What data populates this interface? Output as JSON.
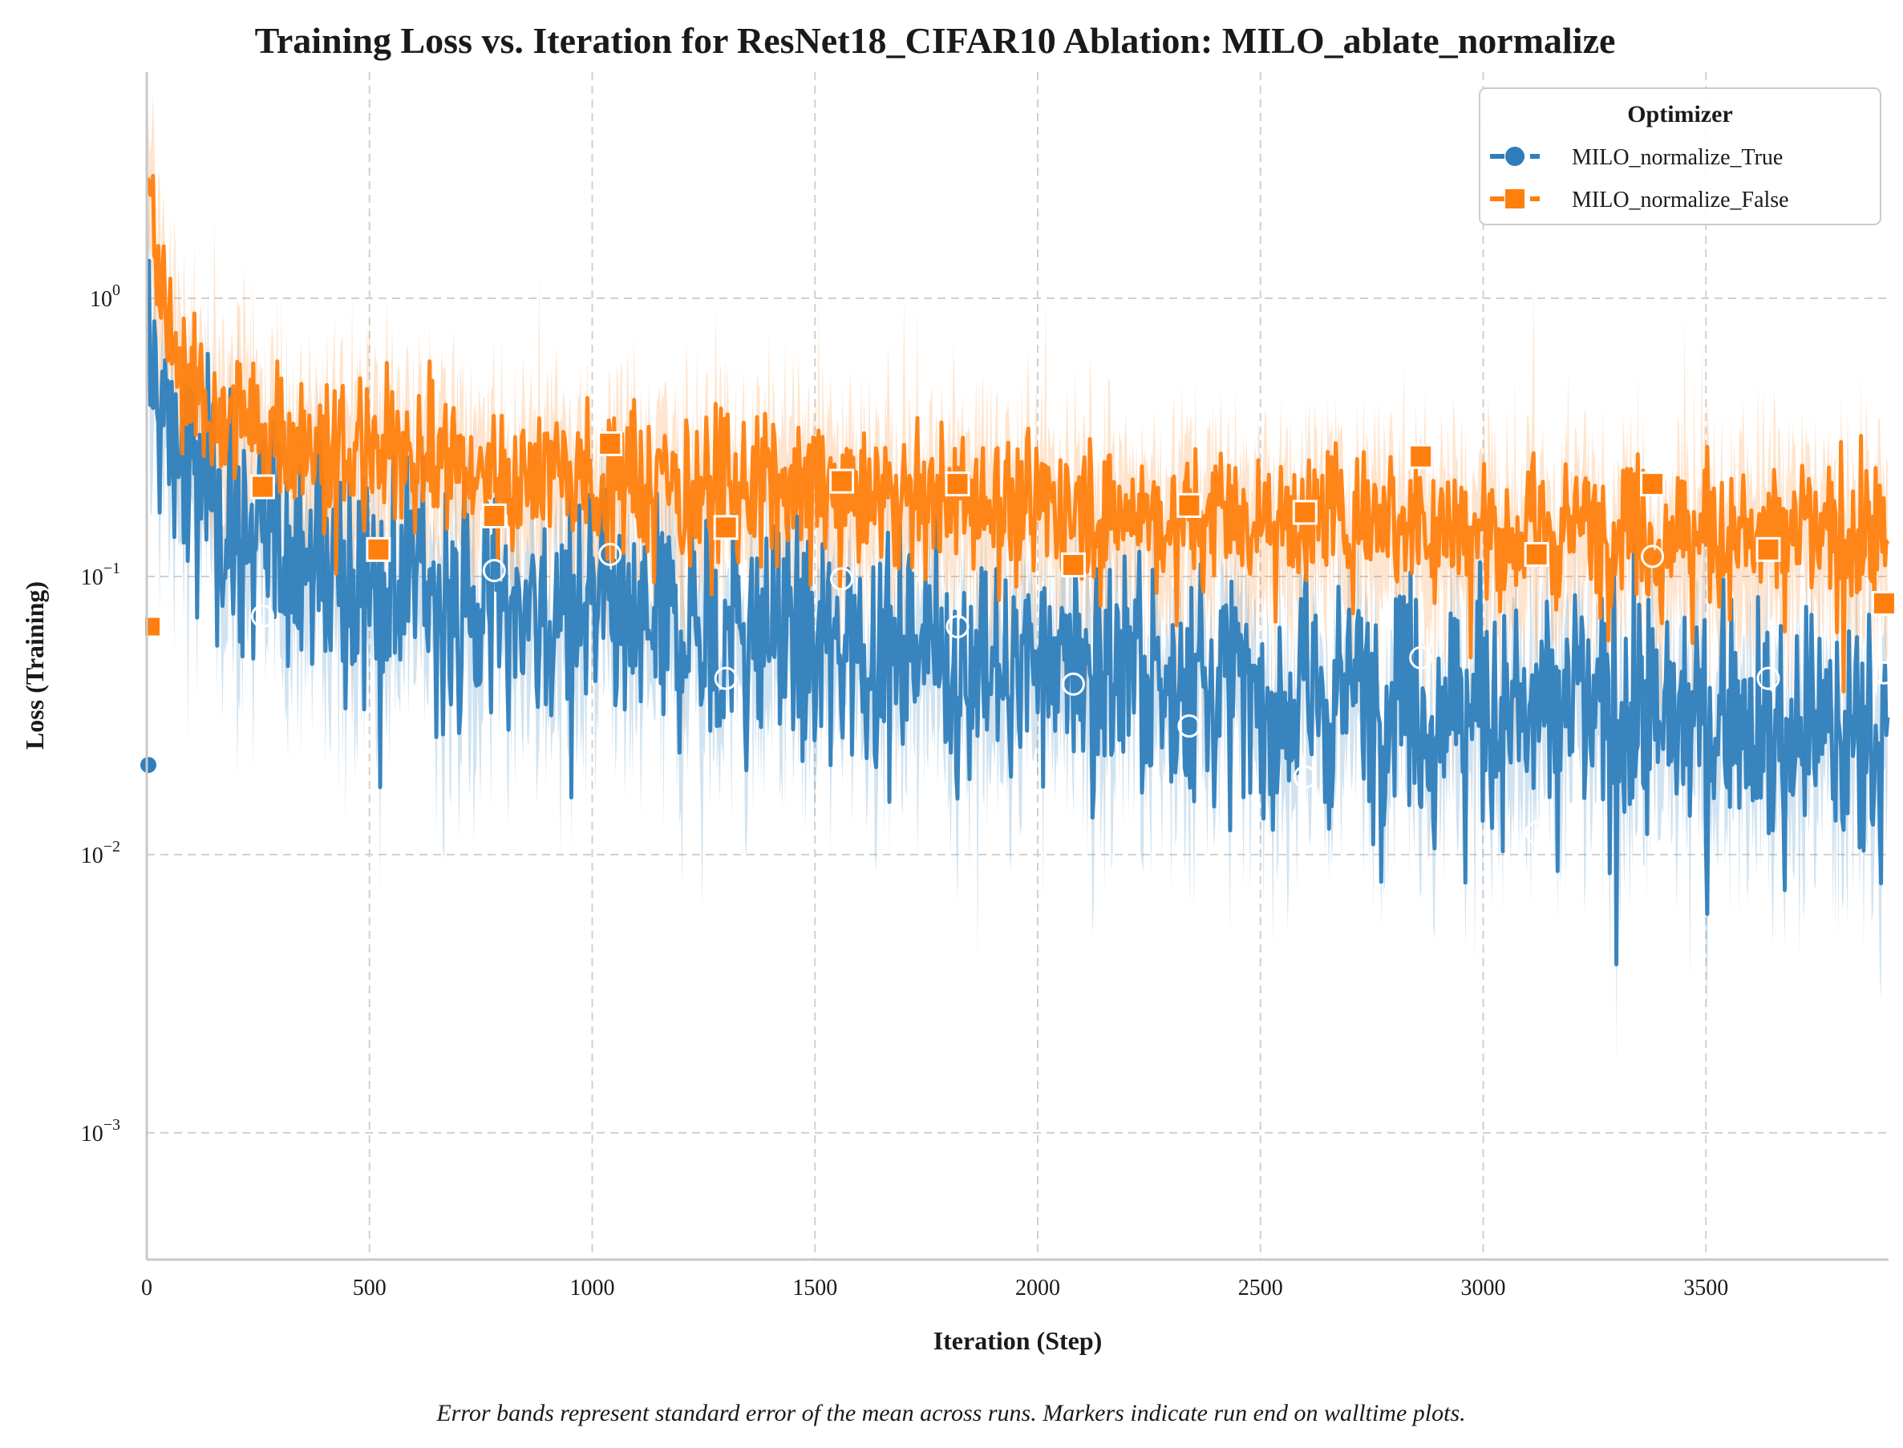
{
  "chart_data": {
    "type": "line",
    "title": "Training Loss vs. Iteration for ResNet18_CIFAR10 Ablation: MILO_ablate_normalize",
    "xlabel": "Iteration (Step)",
    "ylabel": "Loss (Training)",
    "yscale": "log",
    "xlim": [
      0,
      3910
    ],
    "ylim": [
      0.00035,
      6.5
    ],
    "x_ticks": [
      0,
      500,
      1000,
      1500,
      2000,
      2500,
      3000,
      3500
    ],
    "y_ticks": [
      {
        "value": 0.001,
        "base": "10",
        "exp": "−3"
      },
      {
        "value": 0.01,
        "base": "10",
        "exp": "−2"
      },
      {
        "value": 0.1,
        "base": "10",
        "exp": "−1"
      },
      {
        "value": 1,
        "base": "10",
        "exp": "0"
      }
    ],
    "grid": true,
    "legend": {
      "title": "Optimizer",
      "position": "top-right"
    },
    "caption": "Error bands represent standard error of the mean across runs. Markers indicate run end on walltime plots.",
    "series": [
      {
        "name": "MILO_normalize_True",
        "color": "#2e7ebc",
        "marker": "circle",
        "markers": [
          {
            "x": 0,
            "y": 0.021
          },
          {
            "x": 260,
            "y": 0.072
          },
          {
            "x": 780,
            "y": 0.105
          },
          {
            "x": 1040,
            "y": 0.12
          },
          {
            "x": 1300,
            "y": 0.043
          },
          {
            "x": 1560,
            "y": 0.098
          },
          {
            "x": 1820,
            "y": 0.066
          },
          {
            "x": 2080,
            "y": 0.041
          },
          {
            "x": 2340,
            "y": 0.029
          },
          {
            "x": 2600,
            "y": 0.019
          },
          {
            "x": 2860,
            "y": 0.051
          },
          {
            "x": 3120,
            "y": 0.012
          },
          {
            "x": 3380,
            "y": 0.118
          },
          {
            "x": 3640,
            "y": 0.043
          },
          {
            "x": 3900,
            "y": 0.045
          }
        ],
        "trend": [
          {
            "x": 5,
            "y": 0.5
          },
          {
            "x": 50,
            "y": 0.34
          },
          {
            "x": 100,
            "y": 0.23
          },
          {
            "x": 200,
            "y": 0.15
          },
          {
            "x": 400,
            "y": 0.11
          },
          {
            "x": 700,
            "y": 0.09
          },
          {
            "x": 1000,
            "y": 0.072
          },
          {
            "x": 1500,
            "y": 0.058
          },
          {
            "x": 2000,
            "y": 0.048
          },
          {
            "x": 2500,
            "y": 0.04
          },
          {
            "x": 3000,
            "y": 0.034
          },
          {
            "x": 3500,
            "y": 0.03
          },
          {
            "x": 3910,
            "y": 0.027
          }
        ]
      },
      {
        "name": "MILO_normalize_False",
        "color": "#ff7f0e",
        "marker": "square",
        "markers": [
          {
            "x": 0,
            "y": 0.066
          },
          {
            "x": 260,
            "y": 0.21
          },
          {
            "x": 520,
            "y": 0.125
          },
          {
            "x": 780,
            "y": 0.165
          },
          {
            "x": 1040,
            "y": 0.3
          },
          {
            "x": 1300,
            "y": 0.15
          },
          {
            "x": 1560,
            "y": 0.22
          },
          {
            "x": 1820,
            "y": 0.215
          },
          {
            "x": 2080,
            "y": 0.11
          },
          {
            "x": 2340,
            "y": 0.18
          },
          {
            "x": 2600,
            "y": 0.17
          },
          {
            "x": 2860,
            "y": 0.27
          },
          {
            "x": 3120,
            "y": 0.12
          },
          {
            "x": 3380,
            "y": 0.215
          },
          {
            "x": 3640,
            "y": 0.125
          },
          {
            "x": 3900,
            "y": 0.08
          }
        ],
        "trend": [
          {
            "x": 5,
            "y": 1.9
          },
          {
            "x": 50,
            "y": 0.7
          },
          {
            "x": 100,
            "y": 0.45
          },
          {
            "x": 200,
            "y": 0.34
          },
          {
            "x": 400,
            "y": 0.3
          },
          {
            "x": 700,
            "y": 0.26
          },
          {
            "x": 1000,
            "y": 0.23
          },
          {
            "x": 1500,
            "y": 0.2
          },
          {
            "x": 2000,
            "y": 0.18
          },
          {
            "x": 2500,
            "y": 0.165
          },
          {
            "x": 3000,
            "y": 0.152
          },
          {
            "x": 3500,
            "y": 0.143
          },
          {
            "x": 3910,
            "y": 0.136
          }
        ]
      }
    ]
  }
}
